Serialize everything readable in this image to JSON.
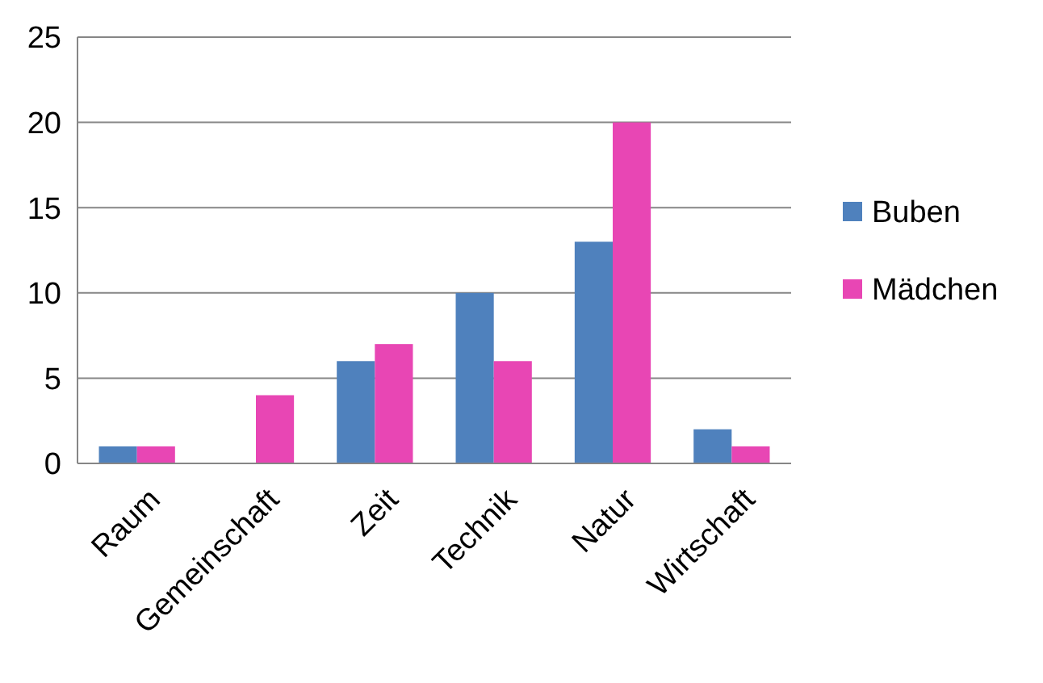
{
  "chart_data": {
    "type": "bar",
    "categories": [
      "Raum",
      "Gemeinschaft",
      "Zeit",
      "Technik",
      "Natur",
      "Wirtschaft"
    ],
    "series": [
      {
        "name": "Buben",
        "color": "#4f81bd",
        "values": [
          1,
          0,
          6,
          10,
          13,
          2
        ]
      },
      {
        "name": "Mädchen",
        "color": "#e846b4",
        "values": [
          1,
          4,
          7,
          6,
          20,
          1
        ]
      }
    ],
    "ylim": [
      0,
      25
    ],
    "yticks": [
      0,
      5,
      10,
      15,
      20,
      25
    ],
    "grid": "y",
    "legend": "right"
  }
}
